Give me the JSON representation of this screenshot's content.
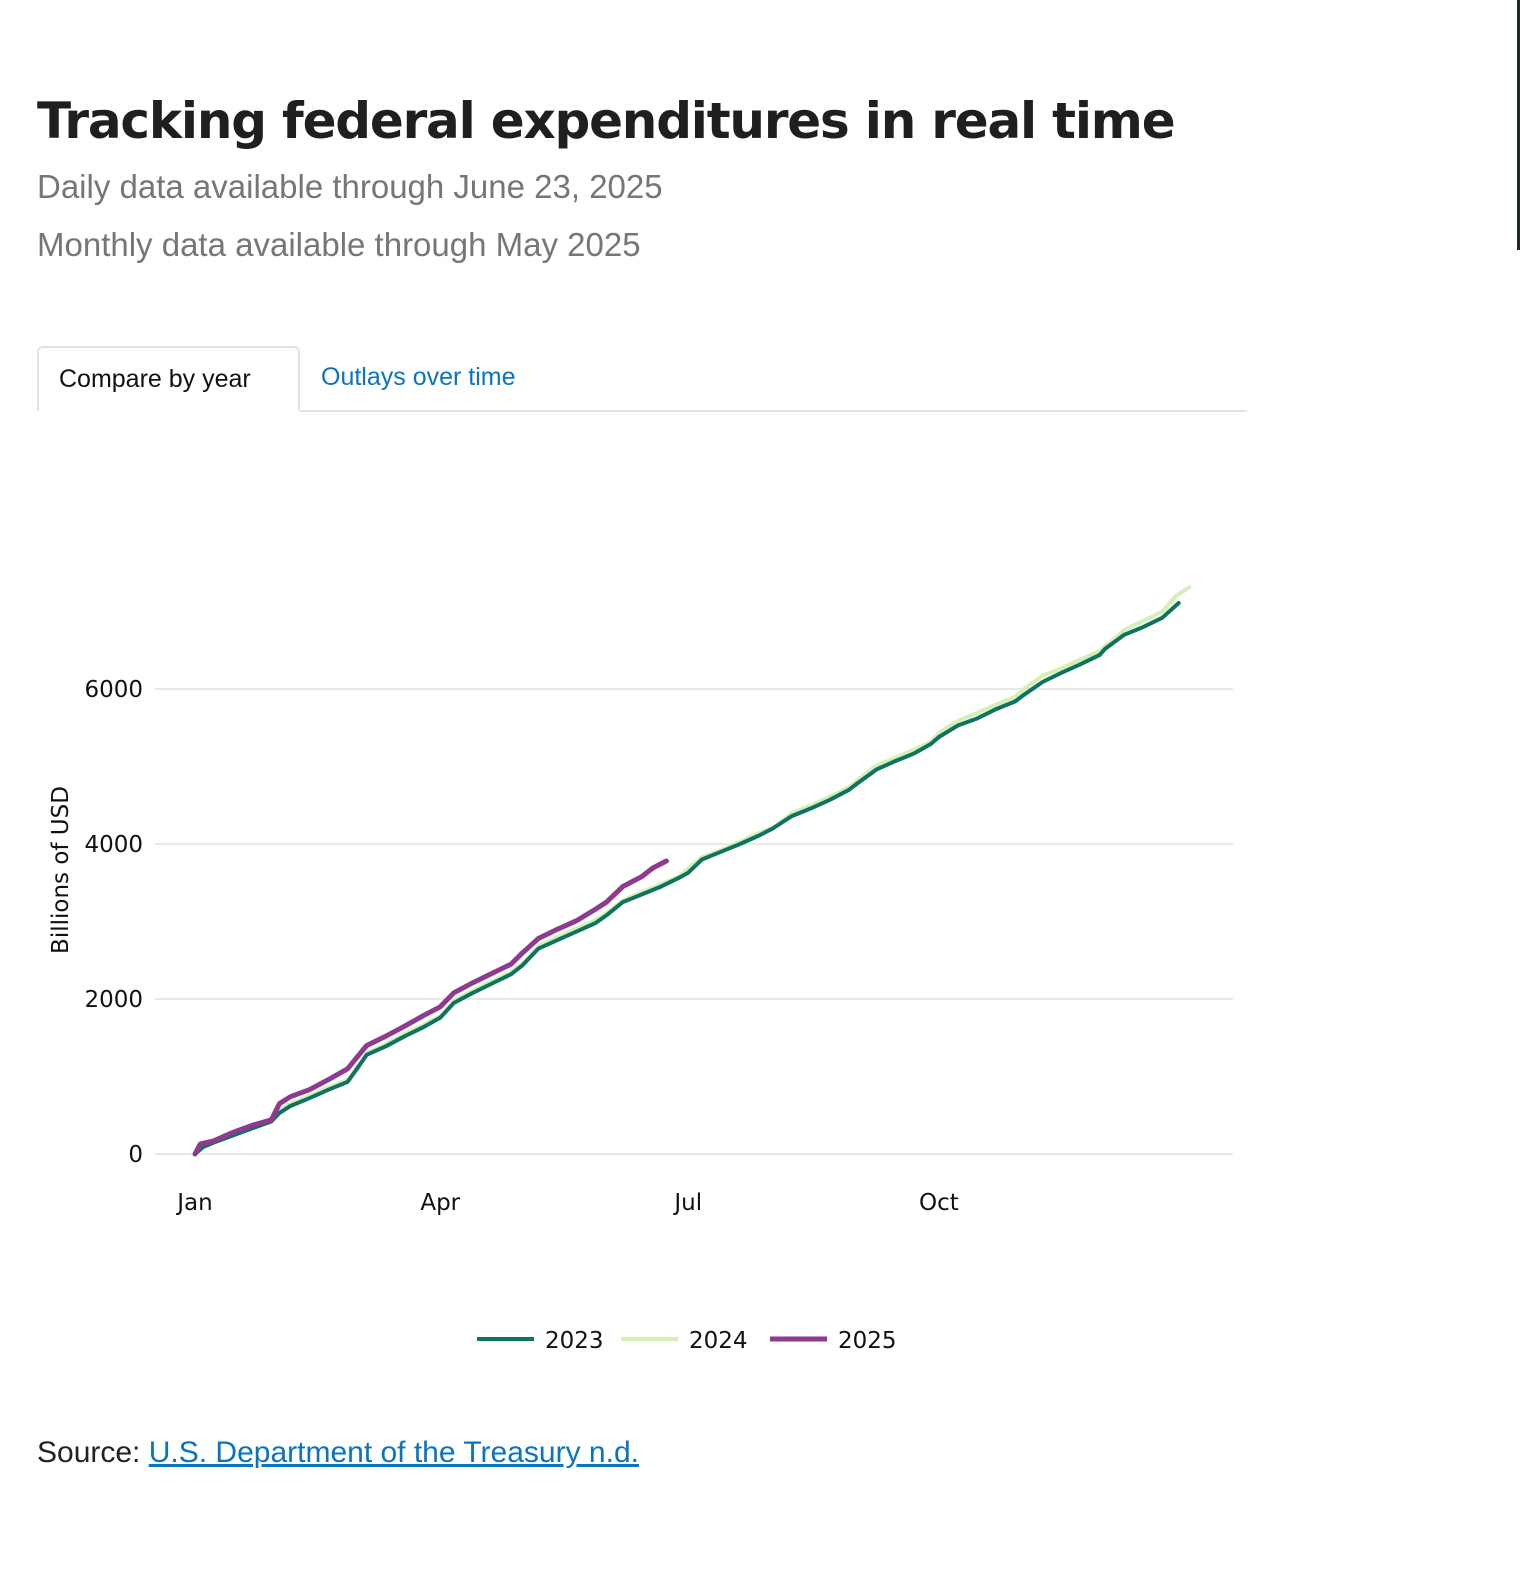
{
  "header": {
    "title": "Tracking federal expenditures in real time",
    "subtitle_daily": "Daily data available through June 23, 2025",
    "subtitle_monthly": "Monthly data available through May 2025"
  },
  "tabs": [
    {
      "label": "Compare by year",
      "active": true
    },
    {
      "label": "Outlays over time",
      "active": false
    }
  ],
  "source": {
    "prefix": "Source: ",
    "link_text": "U.S. Department of the Treasury n.d."
  },
  "chart_data": {
    "type": "line",
    "title": "",
    "xlabel": "",
    "ylabel": "Billions of USD",
    "x_unit": "day of year",
    "xlim": [
      0,
      365
    ],
    "ylim": [
      0,
      7400
    ],
    "x_ticks": [
      {
        "label": "Jan",
        "value": 0
      },
      {
        "label": "Apr",
        "value": 90
      },
      {
        "label": "Jul",
        "value": 181
      },
      {
        "label": "Oct",
        "value": 273
      }
    ],
    "y_ticks": [
      0,
      2000,
      4000,
      6000
    ],
    "grid": true,
    "legend": {
      "position": "bottom-center"
    },
    "series": [
      {
        "name": "2023",
        "color": "#0e7361",
        "x": [
          0,
          3,
          7,
          14,
          21,
          28,
          31,
          35,
          42,
          49,
          56,
          59,
          63,
          70,
          77,
          84,
          90,
          95,
          102,
          109,
          116,
          120,
          126,
          133,
          140,
          147,
          151,
          157,
          164,
          171,
          178,
          181,
          186,
          193,
          200,
          207,
          212,
          219,
          226,
          233,
          240,
          243,
          250,
          257,
          264,
          270,
          273,
          280,
          287,
          294,
          301,
          304,
          311,
          318,
          325,
          332,
          334,
          341,
          348,
          355,
          361
        ],
        "values": [
          0,
          90,
          150,
          240,
          330,
          420,
          530,
          620,
          720,
          830,
          930,
          1080,
          1280,
          1390,
          1520,
          1640,
          1760,
          1950,
          2080,
          2200,
          2320,
          2430,
          2650,
          2760,
          2870,
          2980,
          3080,
          3250,
          3350,
          3450,
          3570,
          3630,
          3800,
          3900,
          4000,
          4110,
          4200,
          4360,
          4460,
          4570,
          4700,
          4780,
          4960,
          5070,
          5170,
          5290,
          5380,
          5530,
          5620,
          5740,
          5840,
          5920,
          6090,
          6210,
          6320,
          6440,
          6520,
          6700,
          6800,
          6920,
          7110
        ]
      },
      {
        "name": "2024",
        "color": "#d4f0b5",
        "x": [
          0,
          3,
          7,
          14,
          21,
          28,
          31,
          35,
          42,
          49,
          56,
          60,
          63,
          70,
          77,
          84,
          91,
          95,
          102,
          109,
          116,
          121,
          126,
          133,
          140,
          147,
          152,
          157,
          164,
          171,
          178,
          182,
          186,
          193,
          200,
          207,
          213,
          219,
          226,
          233,
          240,
          244,
          250,
          257,
          264,
          270,
          274,
          280,
          287,
          294,
          301,
          305,
          311,
          318,
          325,
          332,
          335,
          341,
          348,
          355,
          360,
          365
        ],
        "values": [
          0,
          110,
          180,
          270,
          360,
          450,
          560,
          650,
          750,
          860,
          960,
          1110,
          1300,
          1420,
          1550,
          1670,
          1800,
          1980,
          2110,
          2230,
          2350,
          2480,
          2680,
          2800,
          2910,
          3020,
          3130,
          3270,
          3380,
          3480,
          3590,
          3720,
          3830,
          3920,
          4030,
          4140,
          4230,
          4400,
          4500,
          4610,
          4730,
          4850,
          5010,
          5110,
          5220,
          5320,
          5460,
          5590,
          5690,
          5800,
          5900,
          6020,
          6170,
          6270,
          6380,
          6490,
          6580,
          6760,
          6880,
          7000,
          7200,
          7315
        ]
      },
      {
        "name": "2025",
        "color": "#8e3a8e",
        "x": [
          0,
          2,
          7,
          10,
          14,
          21,
          28,
          31,
          35,
          42,
          49,
          56,
          59,
          63,
          70,
          77,
          84,
          90,
          95,
          102,
          109,
          116,
          120,
          126,
          133,
          140,
          147,
          151,
          157,
          164,
          168,
          173
        ],
        "values": [
          0,
          130,
          170,
          220,
          280,
          370,
          440,
          650,
          740,
          830,
          960,
          1100,
          1230,
          1400,
          1520,
          1650,
          1790,
          1900,
          2080,
          2210,
          2330,
          2450,
          2590,
          2780,
          2900,
          3010,
          3160,
          3250,
          3450,
          3580,
          3690,
          3780
        ]
      }
    ]
  }
}
